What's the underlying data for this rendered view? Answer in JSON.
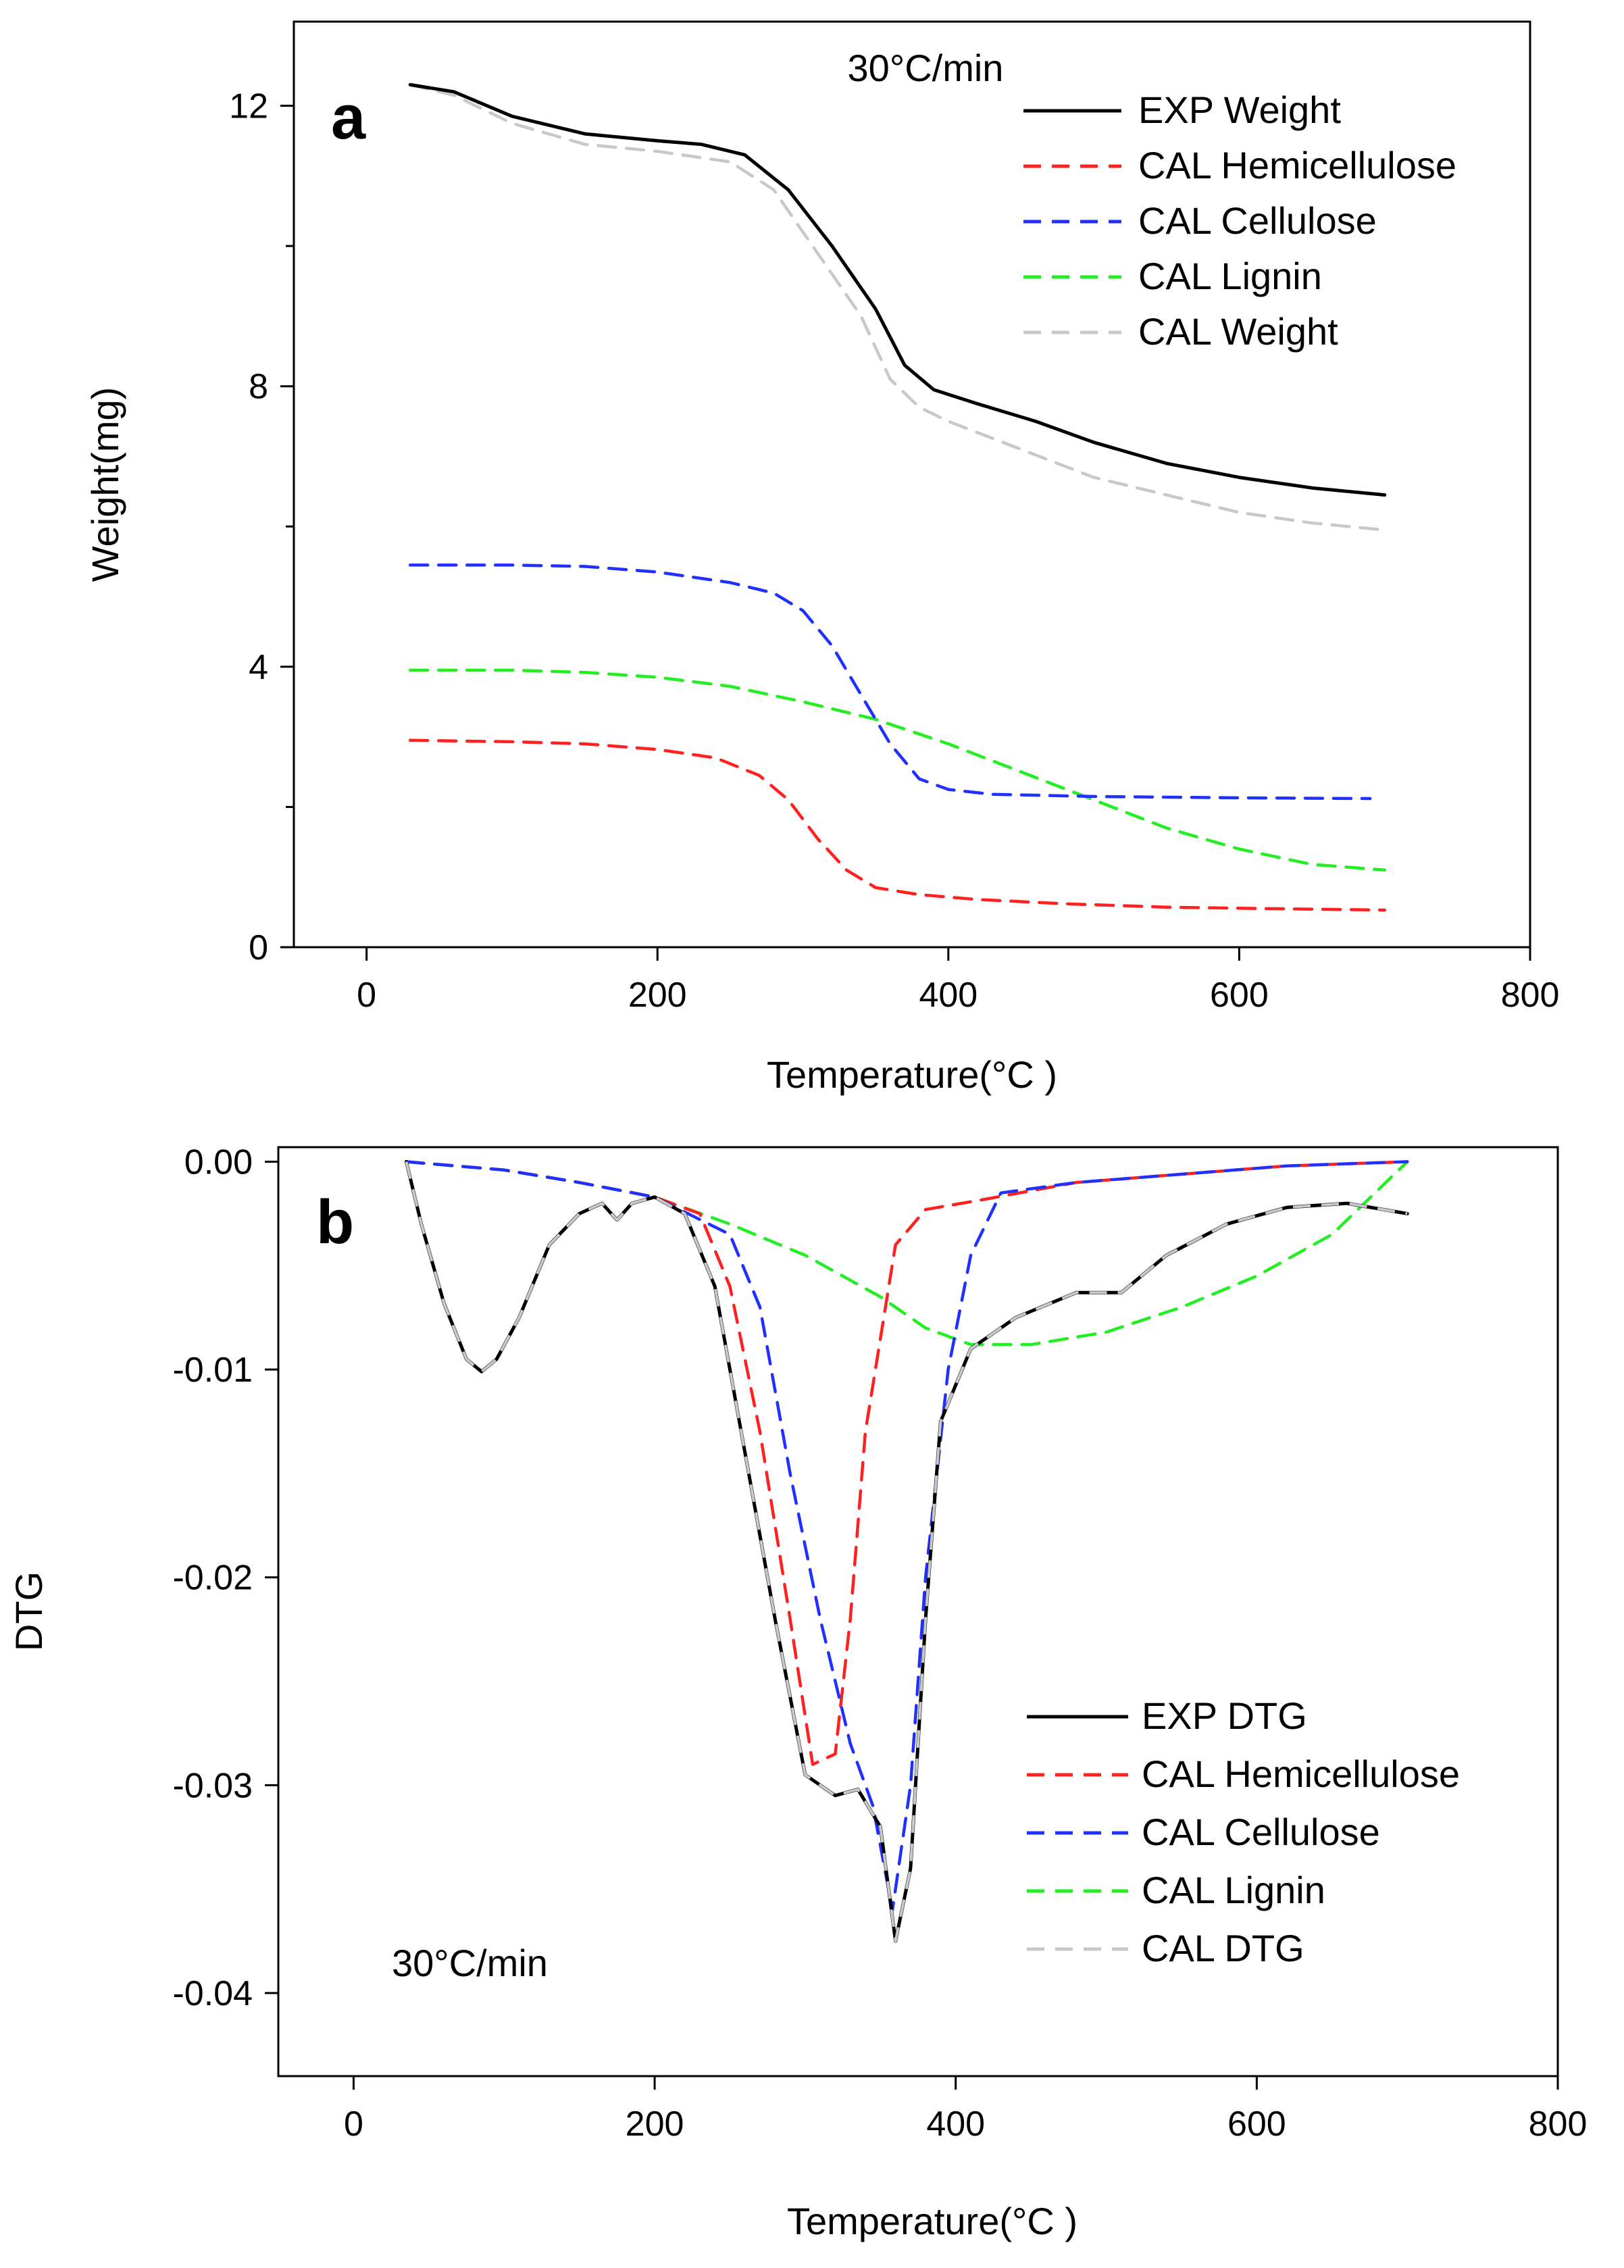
{
  "chart_data": [
    {
      "panel": "a",
      "type": "line",
      "annotation": "30°C/min",
      "xlabel": "Temperature(°C )",
      "ylabel": "Weight(mg)",
      "xlim": [
        -50,
        800
      ],
      "ylim": [
        0,
        13.2
      ],
      "xticks": [
        0,
        200,
        400,
        600,
        800
      ],
      "yticks": [
        0,
        4,
        8,
        12
      ],
      "xtick_labels": [
        "0",
        "200",
        "400",
        "600",
        "800"
      ],
      "ytick_labels": [
        "0",
        "4",
        "8",
        "12"
      ],
      "legend_position": "top-right",
      "series": [
        {
          "name": "EXP Weight",
          "color": "#000000",
          "dash": "solid",
          "points": [
            [
              30,
              12.3
            ],
            [
              60,
              12.2
            ],
            [
              100,
              11.85
            ],
            [
              150,
              11.6
            ],
            [
              200,
              11.5
            ],
            [
              230,
              11.45
            ],
            [
              260,
              11.3
            ],
            [
              290,
              10.8
            ],
            [
              320,
              10.0
            ],
            [
              350,
              9.1
            ],
            [
              370,
              8.3
            ],
            [
              390,
              7.95
            ],
            [
              420,
              7.75
            ],
            [
              460,
              7.5
            ],
            [
              500,
              7.2
            ],
            [
              550,
              6.9
            ],
            [
              600,
              6.7
            ],
            [
              650,
              6.55
            ],
            [
              700,
              6.45
            ]
          ]
        },
        {
          "name": "CAL Hemicellulose",
          "color": "#ff2020",
          "dash": "dashed",
          "points": [
            [
              30,
              2.95
            ],
            [
              100,
              2.93
            ],
            [
              150,
              2.9
            ],
            [
              200,
              2.82
            ],
            [
              240,
              2.7
            ],
            [
              270,
              2.45
            ],
            [
              290,
              2.1
            ],
            [
              310,
              1.55
            ],
            [
              330,
              1.1
            ],
            [
              350,
              0.85
            ],
            [
              380,
              0.75
            ],
            [
              420,
              0.68
            ],
            [
              480,
              0.62
            ],
            [
              550,
              0.57
            ],
            [
              620,
              0.55
            ],
            [
              700,
              0.53
            ]
          ]
        },
        {
          "name": "CAL Cellulose",
          "color": "#2030ff",
          "dash": "dashed",
          "points": [
            [
              30,
              5.45
            ],
            [
              100,
              5.45
            ],
            [
              150,
              5.43
            ],
            [
              200,
              5.35
            ],
            [
              250,
              5.2
            ],
            [
              280,
              5.05
            ],
            [
              300,
              4.8
            ],
            [
              320,
              4.3
            ],
            [
              340,
              3.6
            ],
            [
              360,
              2.9
            ],
            [
              380,
              2.4
            ],
            [
              400,
              2.25
            ],
            [
              430,
              2.18
            ],
            [
              500,
              2.15
            ],
            [
              600,
              2.13
            ],
            [
              690,
              2.12
            ]
          ]
        },
        {
          "name": "CAL Lignin",
          "color": "#22ee22",
          "dash": "dashed",
          "points": [
            [
              30,
              3.95
            ],
            [
              100,
              3.95
            ],
            [
              150,
              3.92
            ],
            [
              200,
              3.85
            ],
            [
              250,
              3.72
            ],
            [
              300,
              3.5
            ],
            [
              350,
              3.25
            ],
            [
              400,
              2.9
            ],
            [
              450,
              2.5
            ],
            [
              500,
              2.1
            ],
            [
              550,
              1.7
            ],
            [
              600,
              1.4
            ],
            [
              650,
              1.18
            ],
            [
              700,
              1.1
            ]
          ]
        },
        {
          "name": "CAL Weight",
          "color": "#c8c8c8",
          "dash": "dashed",
          "points": [
            [
              30,
              12.3
            ],
            [
              60,
              12.15
            ],
            [
              100,
              11.75
            ],
            [
              150,
              11.45
            ],
            [
              200,
              11.35
            ],
            [
              250,
              11.2
            ],
            [
              280,
              10.8
            ],
            [
              310,
              9.9
            ],
            [
              340,
              9.0
            ],
            [
              360,
              8.1
            ],
            [
              380,
              7.7
            ],
            [
              400,
              7.5
            ],
            [
              450,
              7.1
            ],
            [
              500,
              6.7
            ],
            [
              550,
              6.45
            ],
            [
              600,
              6.2
            ],
            [
              650,
              6.05
            ],
            [
              700,
              5.95
            ]
          ]
        }
      ]
    },
    {
      "panel": "b",
      "type": "line",
      "annotation": "30°C/min",
      "xlabel": "Temperature(°C )",
      "ylabel": "DTG",
      "xlim": [
        -50,
        800
      ],
      "ylim": [
        -0.044,
        0.0007
      ],
      "xticks": [
        0,
        200,
        400,
        600,
        800
      ],
      "yticks": [
        0,
        -0.01,
        -0.02,
        -0.03,
        -0.04
      ],
      "xtick_labels": [
        "0",
        "200",
        "400",
        "600",
        "800"
      ],
      "ytick_labels": [
        "0.00",
        "-0.01",
        "-0.02",
        "-0.03",
        "-0.04"
      ],
      "legend_position": "bottom-right",
      "series": [
        {
          "name": "EXP DTG",
          "color": "#000000",
          "dash": "solid",
          "points": [
            [
              35,
              0
            ],
            [
              45,
              -0.003
            ],
            [
              60,
              -0.0068
            ],
            [
              75,
              -0.0095
            ],
            [
              85,
              -0.0101
            ],
            [
              95,
              -0.0095
            ],
            [
              110,
              -0.0075
            ],
            [
              130,
              -0.004
            ],
            [
              150,
              -0.0025
            ],
            [
              165,
              -0.002
            ],
            [
              175,
              -0.0028
            ],
            [
              185,
              -0.002
            ],
            [
              200,
              -0.0017
            ],
            [
              220,
              -0.0025
            ],
            [
              240,
              -0.006
            ],
            [
              260,
              -0.014
            ],
            [
              280,
              -0.022
            ],
            [
              300,
              -0.0295
            ],
            [
              320,
              -0.0305
            ],
            [
              335,
              -0.0302
            ],
            [
              350,
              -0.032
            ],
            [
              360,
              -0.0375
            ],
            [
              370,
              -0.034
            ],
            [
              380,
              -0.022
            ],
            [
              390,
              -0.0125
            ],
            [
              410,
              -0.009
            ],
            [
              440,
              -0.0075
            ],
            [
              480,
              -0.0063
            ],
            [
              510,
              -0.0063
            ],
            [
              540,
              -0.0045
            ],
            [
              580,
              -0.003
            ],
            [
              620,
              -0.0022
            ],
            [
              660,
              -0.002
            ],
            [
              700,
              -0.0025
            ]
          ]
        },
        {
          "name": "CAL Hemicellulose",
          "color": "#ff2020",
          "dash": "dashed",
          "points": [
            [
              35,
              0
            ],
            [
              100,
              -0.0004
            ],
            [
              150,
              -0.001
            ],
            [
              200,
              -0.0017
            ],
            [
              230,
              -0.0025
            ],
            [
              250,
              -0.006
            ],
            [
              270,
              -0.013
            ],
            [
              290,
              -0.022
            ],
            [
              305,
              -0.029
            ],
            [
              320,
              -0.0285
            ],
            [
              330,
              -0.022
            ],
            [
              340,
              -0.013
            ],
            [
              360,
              -0.004
            ],
            [
              380,
              -0.0023
            ],
            [
              420,
              -0.0018
            ],
            [
              480,
              -0.001
            ],
            [
              550,
              -0.0006
            ],
            [
              620,
              -0.0002
            ],
            [
              700,
              0
            ]
          ]
        },
        {
          "name": "CAL Cellulose",
          "color": "#2030ff",
          "dash": "dashed",
          "points": [
            [
              35,
              0
            ],
            [
              100,
              -0.0004
            ],
            [
              150,
              -0.001
            ],
            [
              200,
              -0.0017
            ],
            [
              250,
              -0.0035
            ],
            [
              270,
              -0.007
            ],
            [
              290,
              -0.015
            ],
            [
              310,
              -0.022
            ],
            [
              330,
              -0.028
            ],
            [
              345,
              -0.031
            ],
            [
              358,
              -0.036
            ],
            [
              370,
              -0.03
            ],
            [
              380,
              -0.02
            ],
            [
              395,
              -0.01
            ],
            [
              410,
              -0.0045
            ],
            [
              430,
              -0.0015
            ],
            [
              480,
              -0.001
            ],
            [
              550,
              -0.0006
            ],
            [
              620,
              -0.0002
            ],
            [
              700,
              0
            ]
          ]
        },
        {
          "name": "CAL Lignin",
          "color": "#22ee22",
          "dash": "dashed",
          "points": [
            [
              35,
              0
            ],
            [
              100,
              -0.0004
            ],
            [
              150,
              -0.001
            ],
            [
              200,
              -0.0017
            ],
            [
              250,
              -0.003
            ],
            [
              300,
              -0.0045
            ],
            [
              350,
              -0.0065
            ],
            [
              380,
              -0.008
            ],
            [
              410,
              -0.0088
            ],
            [
              450,
              -0.0088
            ],
            [
              500,
              -0.0082
            ],
            [
              550,
              -0.007
            ],
            [
              600,
              -0.0055
            ],
            [
              650,
              -0.0035
            ],
            [
              700,
              0
            ]
          ]
        },
        {
          "name": "CAL DTG",
          "color": "#c8c8c8",
          "dash": "dashed",
          "points": [
            [
              35,
              0
            ],
            [
              45,
              -0.003
            ],
            [
              60,
              -0.0068
            ],
            [
              75,
              -0.0095
            ],
            [
              85,
              -0.0101
            ],
            [
              95,
              -0.0095
            ],
            [
              110,
              -0.0075
            ],
            [
              130,
              -0.004
            ],
            [
              150,
              -0.0025
            ],
            [
              165,
              -0.002
            ],
            [
              175,
              -0.0028
            ],
            [
              185,
              -0.002
            ],
            [
              200,
              -0.0017
            ],
            [
              220,
              -0.0025
            ],
            [
              240,
              -0.006
            ],
            [
              260,
              -0.014
            ],
            [
              280,
              -0.022
            ],
            [
              300,
              -0.0295
            ],
            [
              320,
              -0.0305
            ],
            [
              335,
              -0.0302
            ],
            [
              350,
              -0.032
            ],
            [
              360,
              -0.0375
            ],
            [
              370,
              -0.034
            ],
            [
              380,
              -0.022
            ],
            [
              390,
              -0.0125
            ],
            [
              410,
              -0.009
            ],
            [
              440,
              -0.0075
            ],
            [
              480,
              -0.0063
            ],
            [
              510,
              -0.0063
            ],
            [
              540,
              -0.0045
            ],
            [
              580,
              -0.003
            ],
            [
              620,
              -0.0022
            ],
            [
              660,
              -0.002
            ],
            [
              700,
              -0.0025
            ]
          ]
        }
      ]
    }
  ]
}
